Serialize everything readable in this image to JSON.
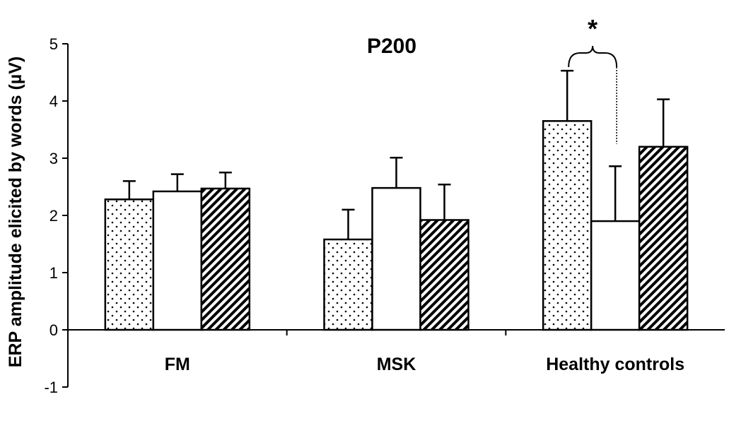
{
  "chart_data": {
    "type": "bar",
    "title": "P200",
    "ylabel": "ERP amplitude elicited by words (µV)",
    "xlabel": "",
    "ylim": [
      -1,
      5
    ],
    "yticks": [
      -1,
      0,
      1,
      2,
      3,
      4,
      5
    ],
    "categories": [
      "FM",
      "MSK",
      "Healthy controls"
    ],
    "series": [
      {
        "fill": "dotted",
        "values": [
          2.28,
          1.58,
          3.65
        ],
        "errors": [
          0.32,
          0.52,
          0.88
        ]
      },
      {
        "fill": "white",
        "values": [
          2.42,
          2.48,
          1.9
        ],
        "errors": [
          0.3,
          0.53,
          0.96
        ]
      },
      {
        "fill": "hatched",
        "values": [
          2.47,
          1.92,
          3.2
        ],
        "errors": [
          0.28,
          0.62,
          0.83
        ]
      }
    ],
    "annotation": {
      "text": "*",
      "between": "Healthy controls series 1 and series 2"
    },
    "grid": false,
    "legend": "none"
  }
}
